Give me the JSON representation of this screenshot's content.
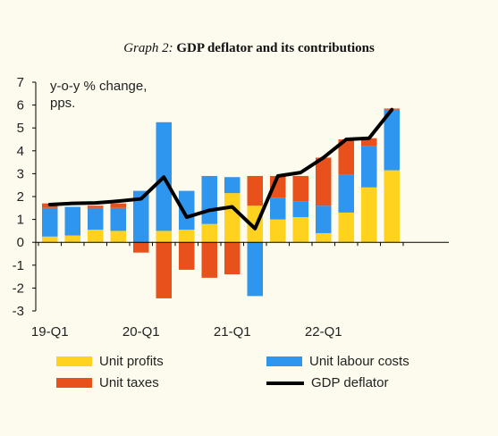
{
  "title": {
    "lead": "Graph 2:",
    "main": "GDP deflator and its contributions"
  },
  "chart_data": {
    "type": "bar",
    "stacked": true,
    "ylabel": "y-o-y % change, pps.",
    "ylim": [
      -3,
      7
    ],
    "yticks": [
      -3,
      -2,
      -1,
      0,
      1,
      2,
      3,
      4,
      5,
      6,
      7
    ],
    "x_tick_labels": [
      "19-Q1",
      "20-Q1",
      "21-Q1",
      "22-Q1"
    ],
    "x_tick_positions": [
      0,
      4,
      8,
      12
    ],
    "categories": [
      "2019Q1",
      "2019Q2",
      "2019Q3",
      "2019Q4",
      "2020Q1",
      "2020Q2",
      "2020Q3",
      "2020Q4",
      "2021Q1",
      "2021Q2",
      "2021Q3",
      "2021Q4",
      "2022Q1",
      "2022Q2",
      "2022Q3",
      "2022Q4"
    ],
    "series": [
      {
        "name": "Unit profits",
        "color": "#ffd21f",
        "values": [
          0.25,
          0.3,
          0.55,
          0.5,
          0,
          0.5,
          0.55,
          0.8,
          2.15,
          1.6,
          1.0,
          1.1,
          0.4,
          1.3,
          2.4,
          3.15
        ]
      },
      {
        "name": "Unit labour costs",
        "color": "#2e96ee",
        "values": [
          1.25,
          1.25,
          0.95,
          1.0,
          2.25,
          4.75,
          1.7,
          2.1,
          0.7,
          -2.35,
          0.95,
          0.7,
          1.2,
          1.65,
          1.8,
          2.65
        ]
      },
      {
        "name": "Unit taxes",
        "color": "#e8501c",
        "values": [
          0.2,
          0,
          0.1,
          0.2,
          -0.45,
          -2.45,
          -1.2,
          -1.55,
          -1.4,
          1.3,
          0.95,
          1.1,
          2.1,
          1.55,
          0.35,
          0.05
        ]
      }
    ],
    "line_series": {
      "name": "GDP deflator",
      "color": "#000000",
      "values": [
        1.65,
        1.7,
        1.72,
        1.8,
        1.9,
        2.85,
        1.1,
        1.4,
        1.55,
        0.6,
        2.9,
        3.05,
        3.7,
        4.5,
        4.55,
        5.8
      ]
    },
    "legend": [
      {
        "label": "Unit profits",
        "kind": "bar",
        "color": "#ffd21f"
      },
      {
        "label": "Unit labour costs",
        "kind": "bar",
        "color": "#2e96ee"
      },
      {
        "label": "Unit taxes",
        "kind": "bar",
        "color": "#e8501c"
      },
      {
        "label": "GDP deflator",
        "kind": "line",
        "color": "#000000"
      }
    ]
  }
}
